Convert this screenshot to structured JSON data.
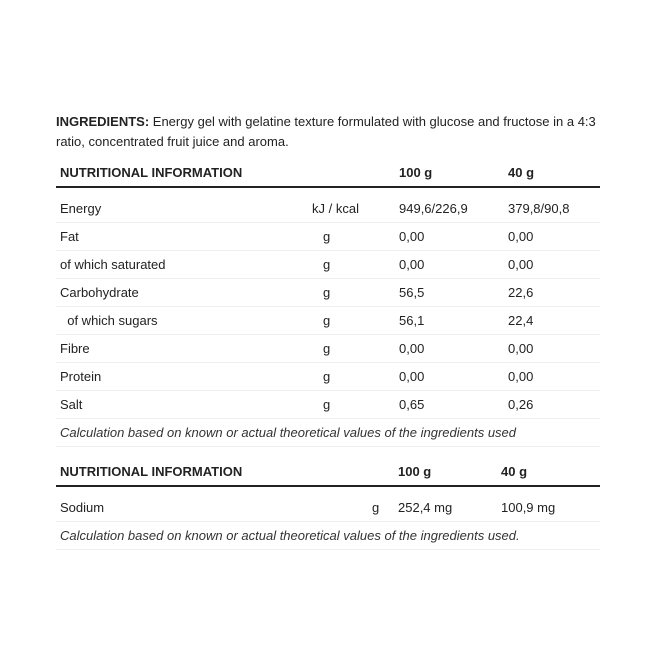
{
  "ingredients": {
    "label": "INGREDIENTS:",
    "text": " Energy gel with gelatine texture formulated with glucose and fructose in a 4:3 ratio, concentrated fruit juice and aroma."
  },
  "table1": {
    "headers": [
      "NUTRITIONAL INFORMATION",
      "100 g",
      "40 g"
    ],
    "rows": [
      {
        "name": "Energy",
        "unit": "kJ / kcal",
        "v100": "949,6/226,9",
        "v40": "379,8/90,8"
      },
      {
        "name": "Fat",
        "unit": "g",
        "v100": "0,00",
        "v40": "0,00"
      },
      {
        "name": "of which saturated",
        "unit": "g",
        "v100": "0,00",
        "v40": "0,00"
      },
      {
        "name": "Carbohydrate",
        "unit": "g",
        "v100": "56,5",
        "v40": "22,6"
      },
      {
        "name": "  of which sugars",
        "unit": "g",
        "v100": "56,1",
        "v40": "22,4"
      },
      {
        "name": "Fibre",
        "unit": "g",
        "v100": "0,00",
        "v40": "0,00"
      },
      {
        "name": "Protein",
        "unit": "g",
        "v100": "0,00",
        "v40": "0,00"
      },
      {
        "name": "Salt",
        "unit": "g",
        "v100": "0,65",
        "v40": "0,26"
      }
    ],
    "note": "Calculation based on known or actual theoretical values of the ingredients used"
  },
  "table2": {
    "headers": [
      "NUTRITIONAL INFORMATION",
      "100 g",
      "40 g"
    ],
    "rows": [
      {
        "name": "Sodium",
        "unit": "g",
        "v100": "252,4 mg",
        "v40": "100,9 mg"
      }
    ],
    "note": "Calculation based on known or actual theoretical values of the ingredients used."
  }
}
